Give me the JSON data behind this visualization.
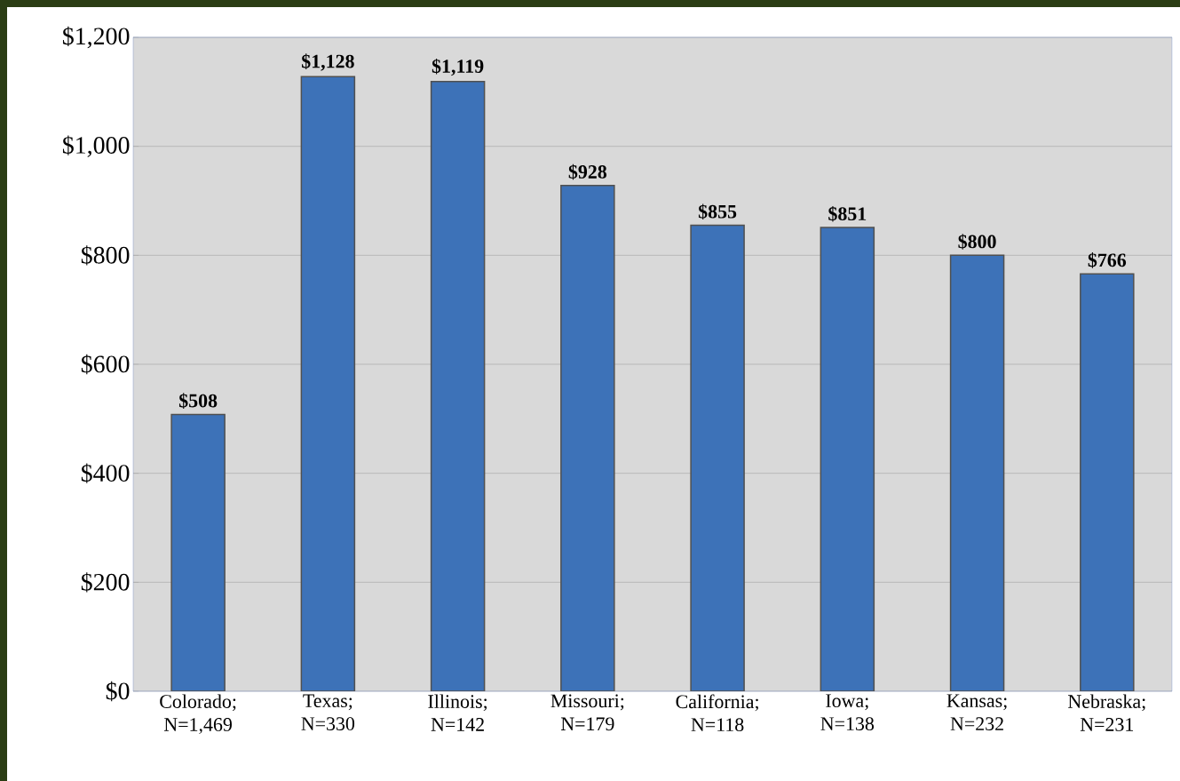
{
  "chart_data": {
    "type": "bar",
    "categories": [
      "Colorado; N=1,469",
      "Texas; N=330",
      "Illinois; N=142",
      "Missouri; N=179",
      "California; N=118",
      "Iowa; N=138",
      "Kansas; N=232",
      "Nebraska; N=231"
    ],
    "values": [
      508,
      1128,
      1119,
      928,
      855,
      851,
      800,
      766
    ],
    "value_labels": [
      "$508",
      "$1,128",
      "$1,119",
      "$928",
      "$855",
      "$851",
      "$800",
      "$766"
    ],
    "color": "#3d72b8",
    "ylim": [
      0,
      1200
    ],
    "yticks": [
      {
        "value": 0,
        "label": "$0"
      },
      {
        "value": 200,
        "label": "$200"
      },
      {
        "value": 400,
        "label": "$400"
      },
      {
        "value": 600,
        "label": "$600"
      },
      {
        "value": 800,
        "label": "$800"
      },
      {
        "value": 1000,
        "label": "$1,000"
      },
      {
        "value": 1200,
        "label": "$1,200"
      }
    ],
    "grid": "y"
  }
}
